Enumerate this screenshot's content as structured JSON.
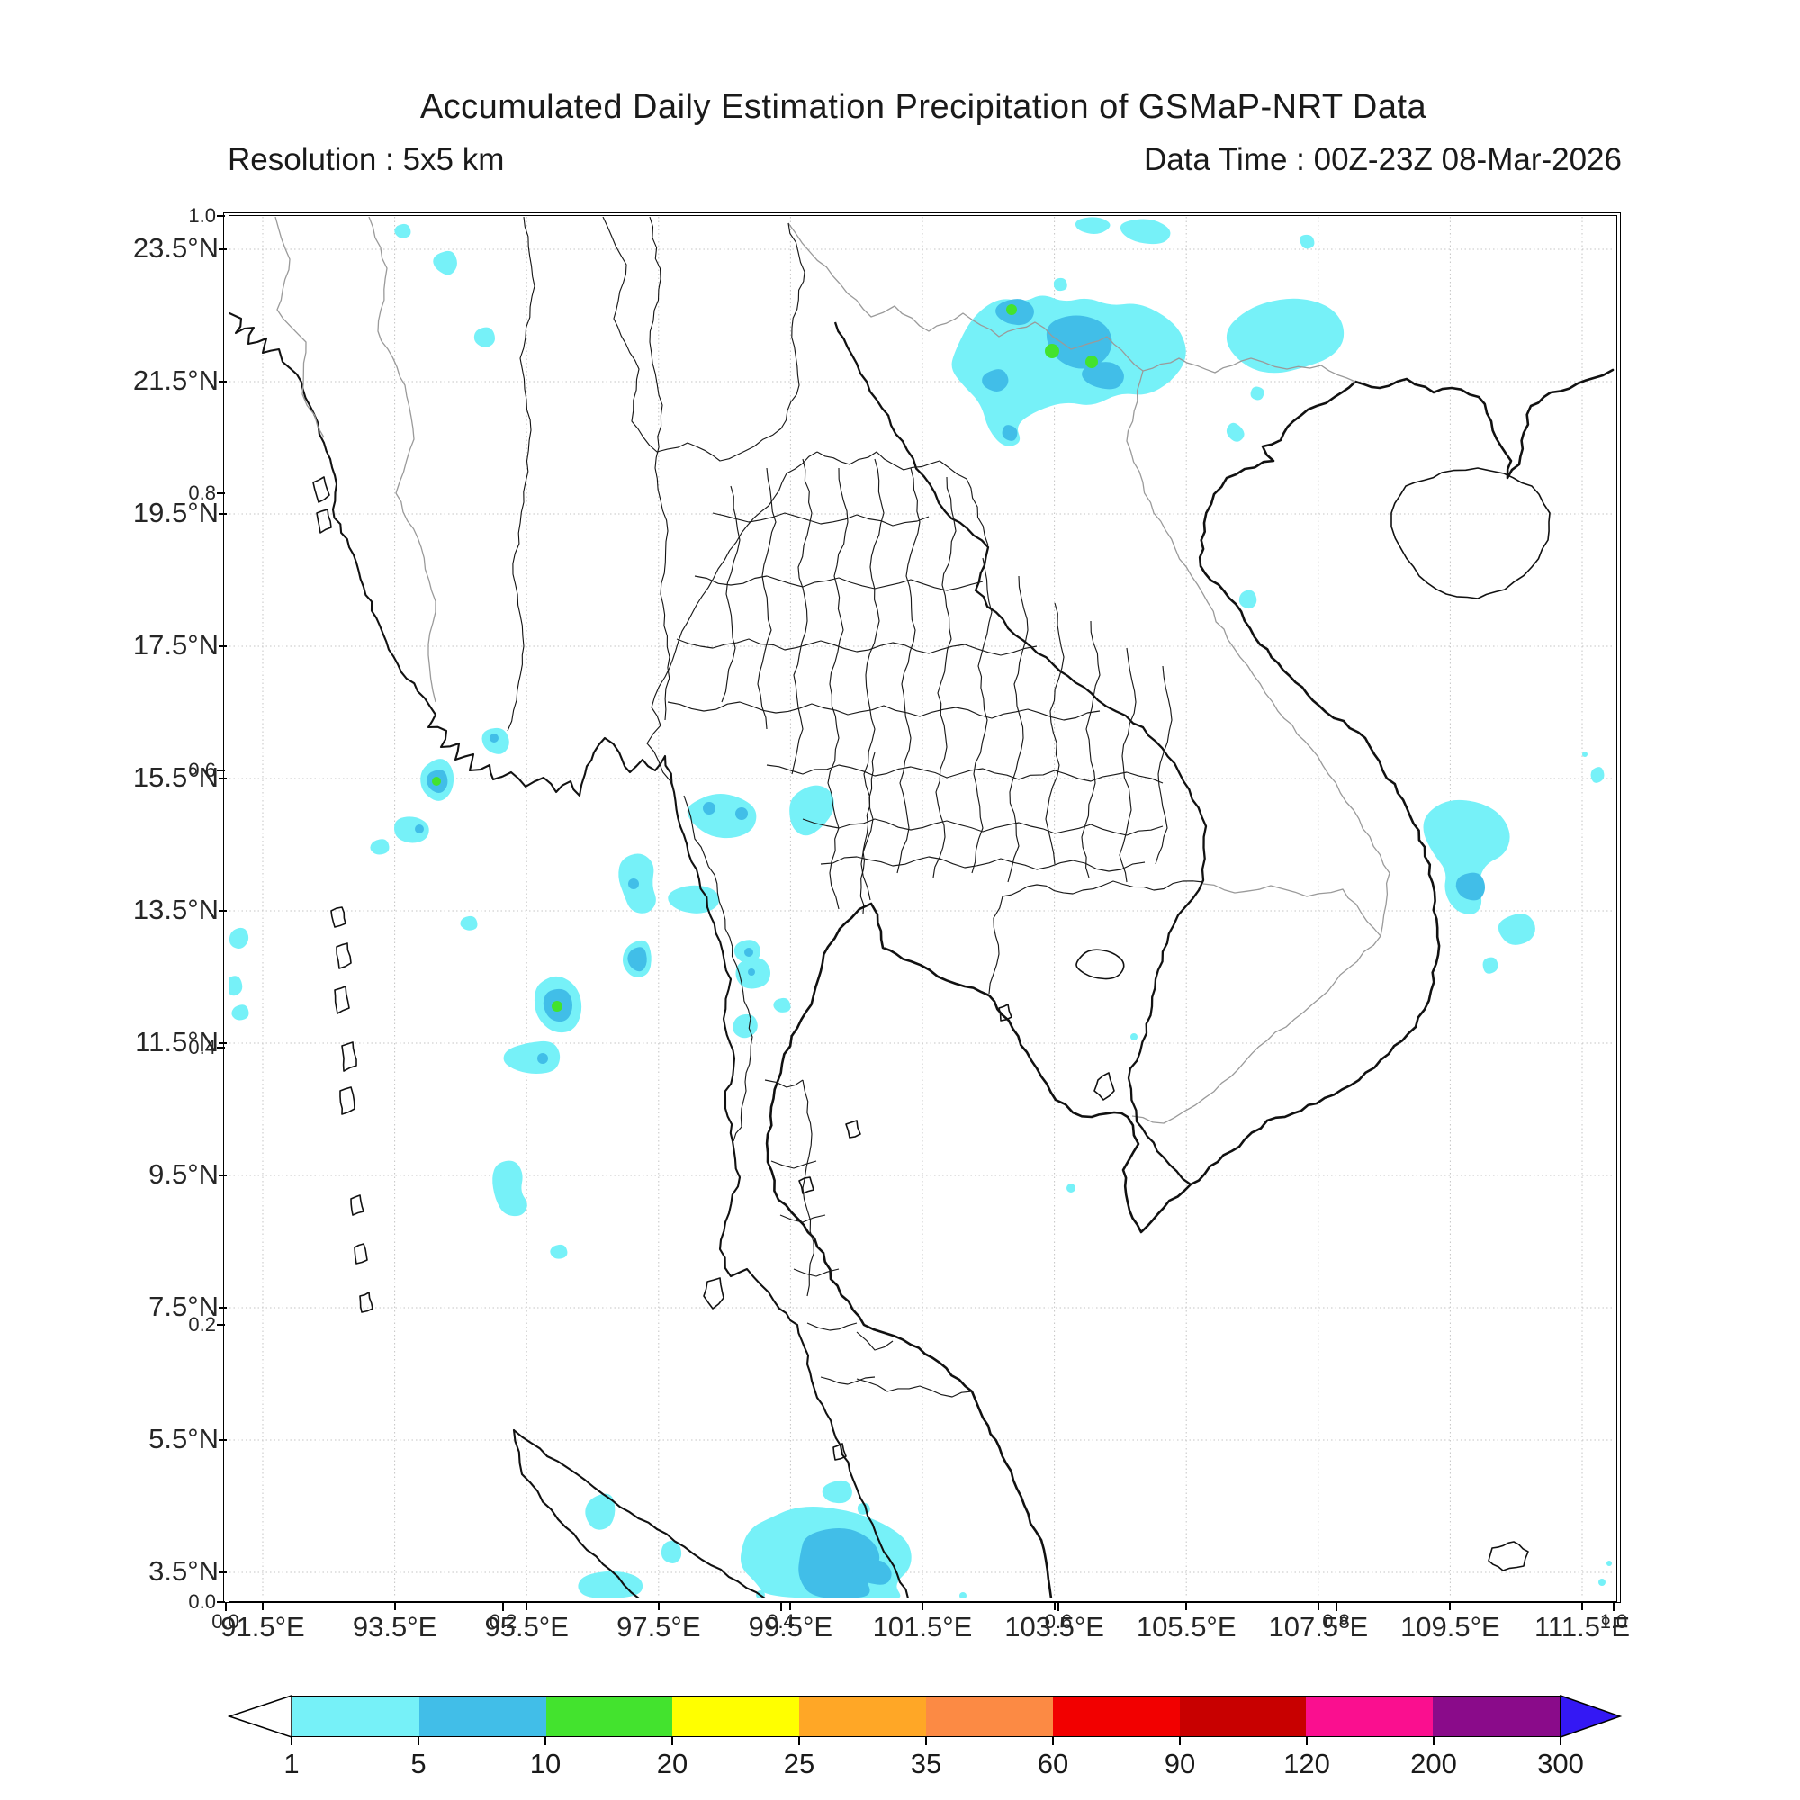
{
  "header": {
    "title": "Accumulated Daily Estimation Precipitation of GSMaP-NRT Data",
    "resolution_label": "Resolution : 5x5 km",
    "data_time_label": "Data Time : 00Z-23Z 08-Mar-2026"
  },
  "map_axes": {
    "lat_tick_labels": [
      "23.5°N",
      "21.5°N",
      "19.5°N",
      "17.5°N",
      "15.5°N",
      "13.5°N",
      "11.5°N",
      "9.5°N",
      "7.5°N",
      "5.5°N",
      "3.5°N"
    ],
    "lon_tick_labels": [
      "91.5°E",
      "93.5°E",
      "95.5°E",
      "97.5°E",
      "99.5°E",
      "101.5°E",
      "103.5°E",
      "105.5°E",
      "107.5°E",
      "109.5°E",
      "111.5°E"
    ],
    "secondary_y_tick_labels": [
      "1.0",
      "0.8",
      "0.6",
      "0.4",
      "0.2",
      "0.0"
    ],
    "secondary_x_tick_labels": [
      "0.0",
      "0.2",
      "0.4",
      "0.6",
      "0.8",
      "1.0"
    ]
  },
  "colorbar": {
    "boundary_labels": [
      "1",
      "5",
      "10",
      "20",
      "25",
      "35",
      "60",
      "90",
      "120",
      "200",
      "300"
    ],
    "segment_colors": [
      "#76F1F8",
      "#41BEE8",
      "#43E32E",
      "#FFFF00",
      "#FFA726",
      "#FC8A44",
      "#F20000",
      "#C80000",
      "#FA0F8F",
      "#8A0B8A"
    ],
    "under_arrow_color": "#FFFFFF",
    "over_arrow_color": "#3418F4"
  },
  "map_colors": {
    "precip_level1": "#76F1F8",
    "precip_level2": "#41BEE8",
    "precip_level3": "#43E32E",
    "coastline": "#111111",
    "country_border": "#9a9a9a",
    "province_border": "#1a1a1a",
    "gridline": "#c4c4c4"
  }
}
